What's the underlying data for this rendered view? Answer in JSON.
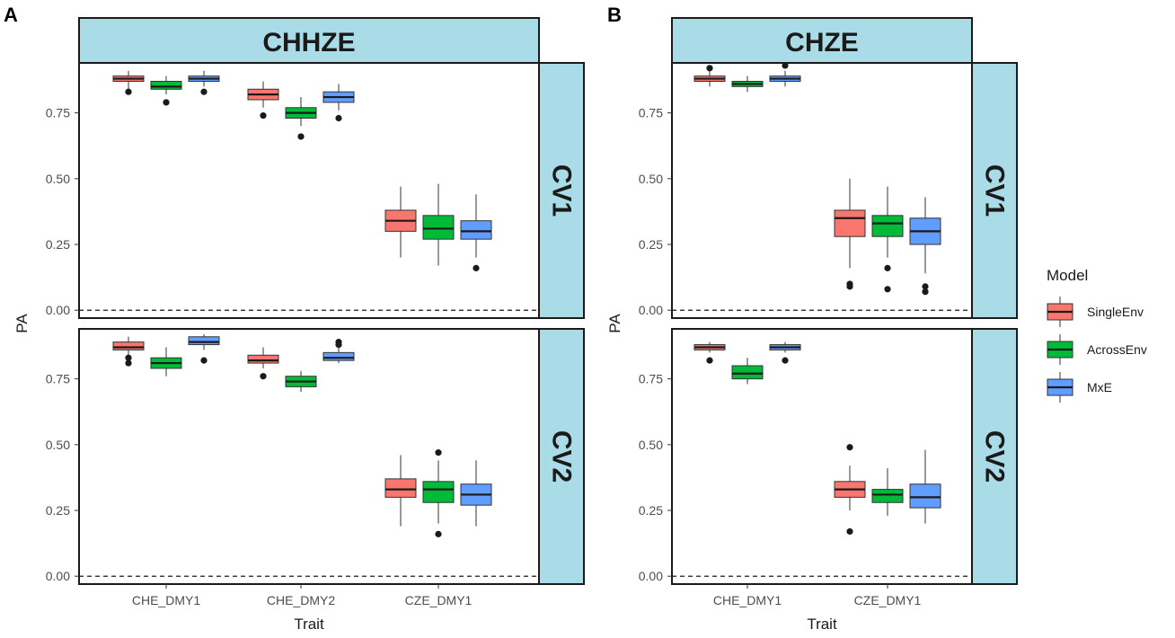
{
  "legend": {
    "title": "Model",
    "items": [
      {
        "name": "SingleEnv",
        "color": "#f8766d"
      },
      {
        "name": "AcrossEnv",
        "color": "#00ba38"
      },
      {
        "name": "MxE",
        "color": "#619cff"
      }
    ]
  },
  "chart_data": [
    {
      "type": "boxplot",
      "panel_label": "A",
      "title": "CHHZE",
      "xlabel": "Trait",
      "ylabel": "PA",
      "categories": [
        "CHE_DMY1",
        "CHE_DMY2",
        "CZE_DMY1"
      ],
      "ylim": [
        -0.03,
        0.94
      ],
      "yticks": [
        0.0,
        0.25,
        0.5,
        0.75
      ],
      "ytick_labels": [
        "0.00",
        "0.25",
        "0.50",
        "0.75"
      ],
      "reference_line": 0.0,
      "facets": [
        {
          "label": "CV1",
          "series": [
            {
              "name": "SingleEnv",
              "boxes": [
                {
                  "min": 0.84,
                  "q1": 0.87,
                  "median": 0.88,
                  "q3": 0.89,
                  "max": 0.91,
                  "outliers": [
                    0.83
                  ]
                },
                {
                  "min": 0.77,
                  "q1": 0.8,
                  "median": 0.82,
                  "q3": 0.84,
                  "max": 0.87,
                  "outliers": [
                    0.74
                  ]
                },
                {
                  "min": 0.2,
                  "q1": 0.3,
                  "median": 0.34,
                  "q3": 0.38,
                  "max": 0.47,
                  "outliers": []
                }
              ]
            },
            {
              "name": "AcrossEnv",
              "boxes": [
                {
                  "min": 0.82,
                  "q1": 0.84,
                  "median": 0.85,
                  "q3": 0.87,
                  "max": 0.89,
                  "outliers": [
                    0.79
                  ]
                },
                {
                  "min": 0.7,
                  "q1": 0.73,
                  "median": 0.75,
                  "q3": 0.77,
                  "max": 0.81,
                  "outliers": [
                    0.66
                  ]
                },
                {
                  "min": 0.17,
                  "q1": 0.27,
                  "median": 0.31,
                  "q3": 0.36,
                  "max": 0.48,
                  "outliers": []
                }
              ]
            },
            {
              "name": "MxE",
              "boxes": [
                {
                  "min": 0.85,
                  "q1": 0.87,
                  "median": 0.88,
                  "q3": 0.89,
                  "max": 0.91,
                  "outliers": [
                    0.83
                  ]
                },
                {
                  "min": 0.76,
                  "q1": 0.79,
                  "median": 0.81,
                  "q3": 0.83,
                  "max": 0.86,
                  "outliers": [
                    0.73
                  ]
                },
                {
                  "min": 0.2,
                  "q1": 0.27,
                  "median": 0.3,
                  "q3": 0.34,
                  "max": 0.44,
                  "outliers": [
                    0.16
                  ]
                }
              ]
            }
          ]
        },
        {
          "label": "CV2",
          "series": [
            {
              "name": "SingleEnv",
              "boxes": [
                {
                  "min": 0.83,
                  "q1": 0.86,
                  "median": 0.87,
                  "q3": 0.89,
                  "max": 0.91,
                  "outliers": [
                    0.81,
                    0.83
                  ]
                },
                {
                  "min": 0.79,
                  "q1": 0.81,
                  "median": 0.82,
                  "q3": 0.84,
                  "max": 0.87,
                  "outliers": [
                    0.76
                  ]
                },
                {
                  "min": 0.19,
                  "q1": 0.3,
                  "median": 0.33,
                  "q3": 0.37,
                  "max": 0.46,
                  "outliers": []
                }
              ]
            },
            {
              "name": "AcrossEnv",
              "boxes": [
                {
                  "min": 0.76,
                  "q1": 0.79,
                  "median": 0.81,
                  "q3": 0.83,
                  "max": 0.87,
                  "outliers": []
                },
                {
                  "min": 0.7,
                  "q1": 0.72,
                  "median": 0.74,
                  "q3": 0.76,
                  "max": 0.78,
                  "outliers": []
                },
                {
                  "min": 0.2,
                  "q1": 0.28,
                  "median": 0.33,
                  "q3": 0.36,
                  "max": 0.44,
                  "outliers": [
                    0.16,
                    0.47
                  ]
                }
              ]
            },
            {
              "name": "MxE",
              "boxes": [
                {
                  "min": 0.86,
                  "q1": 0.88,
                  "median": 0.89,
                  "q3": 0.91,
                  "max": 0.92,
                  "outliers": [
                    0.82
                  ]
                },
                {
                  "min": 0.81,
                  "q1": 0.82,
                  "median": 0.83,
                  "q3": 0.85,
                  "max": 0.87,
                  "outliers": [
                    0.88,
                    0.89
                  ]
                },
                {
                  "min": 0.19,
                  "q1": 0.27,
                  "median": 0.31,
                  "q3": 0.35,
                  "max": 0.44,
                  "outliers": []
                }
              ]
            }
          ]
        }
      ]
    },
    {
      "type": "boxplot",
      "panel_label": "B",
      "title": "CHZE",
      "xlabel": "Trait",
      "ylabel": "PA",
      "categories": [
        "CHE_DMY1",
        "CZE_DMY1"
      ],
      "ylim": [
        -0.03,
        0.94
      ],
      "yticks": [
        0.0,
        0.25,
        0.5,
        0.75
      ],
      "ytick_labels": [
        "0.00",
        "0.25",
        "0.50",
        "0.75"
      ],
      "reference_line": 0.0,
      "facets": [
        {
          "label": "CV1",
          "series": [
            {
              "name": "SingleEnv",
              "boxes": [
                {
                  "min": 0.85,
                  "q1": 0.87,
                  "median": 0.88,
                  "q3": 0.89,
                  "max": 0.91,
                  "outliers": [
                    0.92
                  ]
                },
                {
                  "min": 0.16,
                  "q1": 0.28,
                  "median": 0.35,
                  "q3": 0.38,
                  "max": 0.5,
                  "outliers": [
                    0.09,
                    0.1
                  ]
                }
              ]
            },
            {
              "name": "AcrossEnv",
              "boxes": [
                {
                  "min": 0.83,
                  "q1": 0.85,
                  "median": 0.86,
                  "q3": 0.87,
                  "max": 0.89,
                  "outliers": []
                },
                {
                  "min": 0.2,
                  "q1": 0.28,
                  "median": 0.33,
                  "q3": 0.36,
                  "max": 0.47,
                  "outliers": [
                    0.08,
                    0.16
                  ]
                }
              ]
            },
            {
              "name": "MxE",
              "boxes": [
                {
                  "min": 0.85,
                  "q1": 0.87,
                  "median": 0.88,
                  "q3": 0.89,
                  "max": 0.91,
                  "outliers": [
                    0.93
                  ]
                },
                {
                  "min": 0.14,
                  "q1": 0.25,
                  "median": 0.3,
                  "q3": 0.35,
                  "max": 0.43,
                  "outliers": [
                    0.07,
                    0.09
                  ]
                }
              ]
            }
          ]
        },
        {
          "label": "CV2",
          "series": [
            {
              "name": "SingleEnv",
              "boxes": [
                {
                  "min": 0.85,
                  "q1": 0.86,
                  "median": 0.87,
                  "q3": 0.88,
                  "max": 0.89,
                  "outliers": [
                    0.82
                  ]
                },
                {
                  "min": 0.25,
                  "q1": 0.3,
                  "median": 0.33,
                  "q3": 0.36,
                  "max": 0.42,
                  "outliers": [
                    0.17,
                    0.49
                  ]
                }
              ]
            },
            {
              "name": "AcrossEnv",
              "boxes": [
                {
                  "min": 0.73,
                  "q1": 0.75,
                  "median": 0.77,
                  "q3": 0.8,
                  "max": 0.83,
                  "outliers": []
                },
                {
                  "min": 0.23,
                  "q1": 0.28,
                  "median": 0.31,
                  "q3": 0.33,
                  "max": 0.41,
                  "outliers": []
                }
              ]
            },
            {
              "name": "MxE",
              "boxes": [
                {
                  "min": 0.85,
                  "q1": 0.86,
                  "median": 0.87,
                  "q3": 0.88,
                  "max": 0.89,
                  "outliers": [
                    0.82
                  ]
                },
                {
                  "min": 0.2,
                  "q1": 0.26,
                  "median": 0.3,
                  "q3": 0.35,
                  "max": 0.48,
                  "outliers": []
                }
              ]
            }
          ]
        }
      ]
    }
  ]
}
